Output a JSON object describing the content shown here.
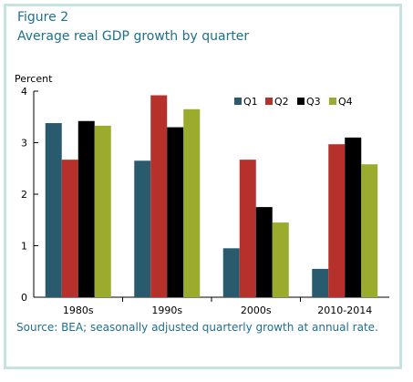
{
  "figure": {
    "label": "Figure 2",
    "title": "Average real GDP growth by quarter",
    "source": "Source: BEA; seasonally adjusted quarterly growth at annual rate."
  },
  "chart_data": {
    "type": "bar",
    "title": "Average real GDP growth by quarter",
    "xlabel": "",
    "ylabel": "Percent",
    "ylim": [
      0,
      4
    ],
    "yticks": [
      0,
      1,
      2,
      3,
      4
    ],
    "grid": false,
    "legend_position": "top-right",
    "categories": [
      "1980s",
      "1990s",
      "2000s",
      "2010-2014"
    ],
    "series": [
      {
        "name": "Q1",
        "color": "#2a5a6e",
        "values": [
          3.38,
          2.65,
          0.95,
          0.55
        ]
      },
      {
        "name": "Q2",
        "color": "#b7312c",
        "values": [
          2.67,
          3.92,
          2.67,
          2.97
        ]
      },
      {
        "name": "Q3",
        "color": "#000000",
        "values": [
          3.42,
          3.3,
          1.75,
          3.1
        ]
      },
      {
        "name": "Q4",
        "color": "#9aab2e",
        "values": [
          3.33,
          3.65,
          1.45,
          2.58
        ]
      }
    ]
  }
}
